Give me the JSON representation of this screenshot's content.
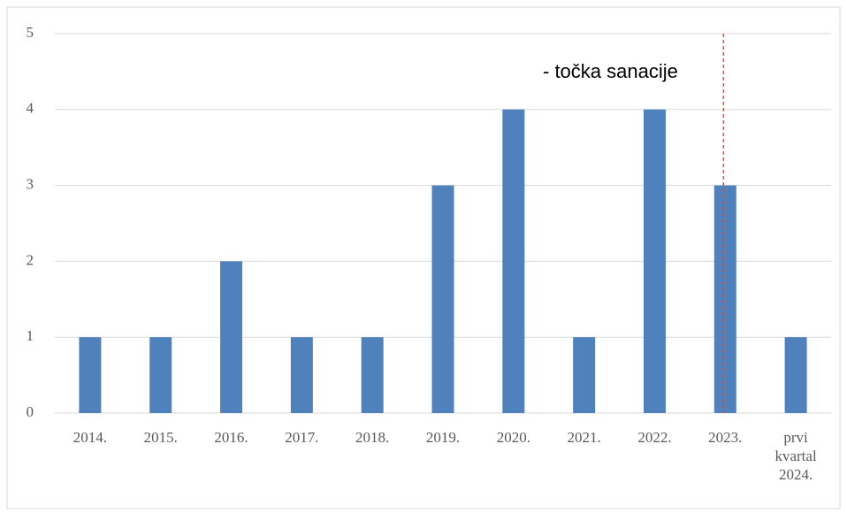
{
  "chart_data": {
    "type": "bar",
    "categories": [
      "2014.",
      "2015.",
      "2016.",
      "2017.",
      "2018.",
      "2019.",
      "2020.",
      "2021.",
      "2022.",
      "2023.",
      "prvi kvartal 2024."
    ],
    "values": [
      1,
      1,
      2,
      1,
      1,
      3,
      4,
      1,
      4,
      3,
      1
    ],
    "color": "#4f81bd",
    "ylim": [
      0,
      5
    ],
    "yticks": [
      0,
      1,
      2,
      3,
      4,
      5
    ],
    "grid": true,
    "annotation": "- točka sanacije"
  }
}
